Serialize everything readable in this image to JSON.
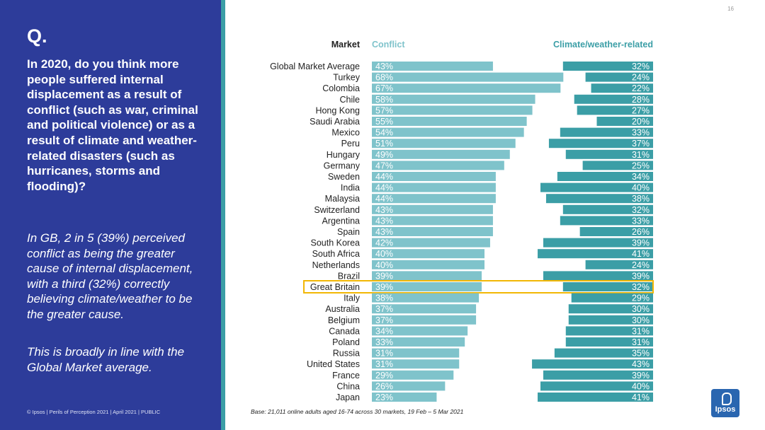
{
  "page": {
    "number": "16",
    "q_mark": "Q.",
    "question": "In 2020, do you think more people suffered internal displacement as a result of conflict (such as war, criminal and political violence) or as a result of climate and weather-related disasters (such as hurricanes, storms and flooding)?",
    "insight": "In GB, 2 in 5 (39%) perceived conflict as being the greater cause of internal displacement, with a third (32%) correctly believing climate/weather to be the greater cause.",
    "insight2": "This is broadly in line with the Global Market average.",
    "footer": "© Ipsos | Perils of Perception 2021 | April 2021 | PUBLIC",
    "base_note": "Base: 21,011 online adults aged 16-74 across 30 markets,  19 Feb – 5 Mar 2021",
    "logo_text": "Ipsos"
  },
  "colors": {
    "panel": "#2d3c9a",
    "conflict": "#7fc3cb",
    "climate": "#3b9ea6",
    "highlight": "#f2b705",
    "conflict_header": "#7fc3cb",
    "climate_header": "#3b9ea6"
  },
  "chart_data": {
    "type": "bar",
    "title": "",
    "headers": {
      "market": "Market",
      "conflict": "Conflict",
      "climate": "Climate/weather-related"
    },
    "categories": [
      "Global Market Average",
      "Turkey",
      "Colombia",
      "Chile",
      "Hong Kong",
      "Saudi Arabia",
      "Mexico",
      "Peru",
      "Hungary",
      "Germany",
      "Sweden",
      "India",
      "Malaysia",
      "Switzerland",
      "Argentina",
      "Spain",
      "South Korea",
      "South Africa",
      "Netherlands",
      "Brazil",
      "Great Britain",
      "Italy",
      "Australia",
      "Belgium",
      "Canada",
      "Poland",
      "Russia",
      "United States",
      "France",
      "China",
      "Japan"
    ],
    "series": [
      {
        "name": "Conflict",
        "values": [
          43,
          68,
          67,
          58,
          57,
          55,
          54,
          51,
          49,
          47,
          44,
          44,
          44,
          43,
          43,
          43,
          42,
          40,
          40,
          39,
          39,
          38,
          37,
          37,
          34,
          33,
          31,
          31,
          29,
          26,
          23
        ]
      },
      {
        "name": "Climate/weather-related",
        "values": [
          32,
          24,
          22,
          28,
          27,
          20,
          33,
          37,
          31,
          25,
          34,
          40,
          38,
          32,
          33,
          26,
          39,
          41,
          24,
          39,
          32,
          29,
          30,
          30,
          31,
          31,
          35,
          43,
          39,
          40,
          41
        ]
      }
    ],
    "value_labels": {
      "conflict": [
        "43%",
        "68%",
        "67%",
        "58%",
        "57%",
        "55%",
        "54%",
        "51%",
        "49%",
        "47%",
        "44%",
        "44%",
        "44%",
        "43%",
        "43%",
        "43%",
        "42%",
        "40%",
        "40%",
        "39%",
        "39%",
        "38%",
        "37%",
        "37%",
        "34%",
        "33%",
        "31%",
        "31%",
        "29%",
        "26%",
        "23%"
      ],
      "climate": [
        "32%",
        "24%",
        "22%",
        "28%",
        "27%",
        "20%",
        "33%",
        "37%",
        "31%",
        "25%",
        "34%",
        "40%",
        "38%",
        "32%",
        "33%",
        "26%",
        "39%",
        "41%",
        "24%",
        "39%",
        "32%",
        "29%",
        "30%",
        "30%",
        "31%",
        "31%",
        "35%",
        "43%",
        "39%",
        "40%",
        "41%"
      ]
    },
    "highlight": "Great Britain",
    "xlim": [
      0,
      100
    ],
    "legend": "top"
  }
}
